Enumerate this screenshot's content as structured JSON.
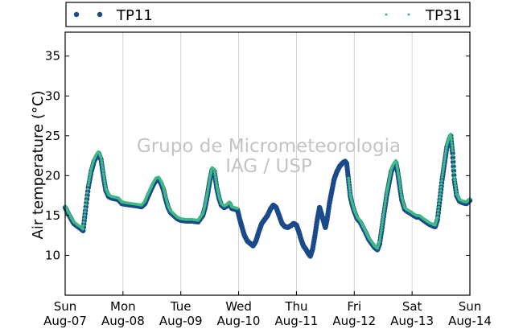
{
  "chart_data": {
    "type": "scatter",
    "ylabel": "Air temperature (°C)",
    "watermark": [
      "Grupo de Micrometeorologia",
      "IAG / USP"
    ],
    "legend_position": "top",
    "grid": "vertical",
    "ylim": [
      5,
      38
    ],
    "yticks": [
      10,
      15,
      20,
      25,
      30,
      35
    ],
    "xlim": [
      0,
      7
    ],
    "xticks": [
      {
        "x": 0,
        "day": "Sun",
        "date": "Aug-07"
      },
      {
        "x": 1,
        "day": "Mon",
        "date": "Aug-08"
      },
      {
        "x": 2,
        "day": "Tue",
        "date": "Aug-09"
      },
      {
        "x": 3,
        "day": "Wed",
        "date": "Aug-10"
      },
      {
        "x": 4,
        "day": "Thu",
        "date": "Aug-11"
      },
      {
        "x": 5,
        "day": "Fri",
        "date": "Aug-12"
      },
      {
        "x": 6,
        "day": "Sat",
        "date": "Aug-13"
      },
      {
        "x": 7,
        "day": "Sun",
        "date": "Aug-14"
      }
    ],
    "series": [
      {
        "name": "TP11",
        "color": "#1b4a8a",
        "marker": "circle",
        "points": [
          [
            0.0,
            16.0
          ],
          [
            0.05,
            15.3
          ],
          [
            0.1,
            14.6
          ],
          [
            0.15,
            14.0
          ],
          [
            0.22,
            13.6
          ],
          [
            0.28,
            13.3
          ],
          [
            0.31,
            13.1
          ],
          [
            0.35,
            15.6
          ],
          [
            0.4,
            18.5
          ],
          [
            0.45,
            20.5
          ],
          [
            0.5,
            21.8
          ],
          [
            0.55,
            22.5
          ],
          [
            0.58,
            22.8
          ],
          [
            0.62,
            22.0
          ],
          [
            0.66,
            20.0
          ],
          [
            0.7,
            18.2
          ],
          [
            0.75,
            17.4
          ],
          [
            0.8,
            17.2
          ],
          [
            0.86,
            17.1
          ],
          [
            0.92,
            17.0
          ],
          [
            0.98,
            16.5
          ],
          [
            1.05,
            16.4
          ],
          [
            1.15,
            16.3
          ],
          [
            1.25,
            16.2
          ],
          [
            1.32,
            16.1
          ],
          [
            1.38,
            16.5
          ],
          [
            1.42,
            17.2
          ],
          [
            1.47,
            18.0
          ],
          [
            1.52,
            18.8
          ],
          [
            1.57,
            19.4
          ],
          [
            1.62,
            19.5
          ],
          [
            1.66,
            19.0
          ],
          [
            1.7,
            18.2
          ],
          [
            1.74,
            17.0
          ],
          [
            1.78,
            16.0
          ],
          [
            1.82,
            15.4
          ],
          [
            1.88,
            15.0
          ],
          [
            1.94,
            14.6
          ],
          [
            2.0,
            14.4
          ],
          [
            2.1,
            14.3
          ],
          [
            2.2,
            14.3
          ],
          [
            2.3,
            14.2
          ],
          [
            2.38,
            15.0
          ],
          [
            2.42,
            16.0
          ],
          [
            2.46,
            17.5
          ],
          [
            2.5,
            19.3
          ],
          [
            2.54,
            20.7
          ],
          [
            2.58,
            20.5
          ],
          [
            2.62,
            18.5
          ],
          [
            2.66,
            17.2
          ],
          [
            2.7,
            16.3
          ],
          [
            2.75,
            16.0
          ],
          [
            2.8,
            16.2
          ],
          [
            2.84,
            16.5
          ],
          [
            2.88,
            15.9
          ],
          [
            2.93,
            15.8
          ],
          [
            2.98,
            15.7
          ],
          [
            3.02,
            14.5
          ],
          [
            3.06,
            13.5
          ],
          [
            3.1,
            12.5
          ],
          [
            3.15,
            11.8
          ],
          [
            3.2,
            11.5
          ],
          [
            3.25,
            11.2
          ],
          [
            3.3,
            11.8
          ],
          [
            3.35,
            13.0
          ],
          [
            3.4,
            14.0
          ],
          [
            3.45,
            14.5
          ],
          [
            3.5,
            15.0
          ],
          [
            3.55,
            15.8
          ],
          [
            3.6,
            16.3
          ],
          [
            3.65,
            16.0
          ],
          [
            3.7,
            15.0
          ],
          [
            3.75,
            14.0
          ],
          [
            3.8,
            13.6
          ],
          [
            3.85,
            13.5
          ],
          [
            3.9,
            13.7
          ],
          [
            3.95,
            14.0
          ],
          [
            4.0,
            13.8
          ],
          [
            4.04,
            13.0
          ],
          [
            4.08,
            12.0
          ],
          [
            4.12,
            11.2
          ],
          [
            4.16,
            10.8
          ],
          [
            4.2,
            10.3
          ],
          [
            4.24,
            9.9
          ],
          [
            4.28,
            10.8
          ],
          [
            4.32,
            12.5
          ],
          [
            4.36,
            14.5
          ],
          [
            4.4,
            16.0
          ],
          [
            4.44,
            15.0
          ],
          [
            4.48,
            14.0
          ],
          [
            4.5,
            13.5
          ],
          [
            4.53,
            14.5
          ],
          [
            4.57,
            16.5
          ],
          [
            4.61,
            18.0
          ],
          [
            4.65,
            19.5
          ],
          [
            4.7,
            20.5
          ],
          [
            4.75,
            21.2
          ],
          [
            4.8,
            21.6
          ],
          [
            4.84,
            21.8
          ],
          [
            4.87,
            21.5
          ],
          [
            4.9,
            19.5
          ],
          [
            4.93,
            17.5
          ],
          [
            4.96,
            16.5
          ],
          [
            5.0,
            15.5
          ],
          [
            5.05,
            14.6
          ],
          [
            5.1,
            14.2
          ],
          [
            5.15,
            13.5
          ],
          [
            5.2,
            12.8
          ],
          [
            5.25,
            12.0
          ],
          [
            5.3,
            11.5
          ],
          [
            5.35,
            11.0
          ],
          [
            5.4,
            10.7
          ],
          [
            5.44,
            11.5
          ],
          [
            5.48,
            13.5
          ],
          [
            5.52,
            15.5
          ],
          [
            5.56,
            17.5
          ],
          [
            5.6,
            19.0
          ],
          [
            5.64,
            20.5
          ],
          [
            5.68,
            21.2
          ],
          [
            5.72,
            21.6
          ],
          [
            5.75,
            20.5
          ],
          [
            5.78,
            19.0
          ],
          [
            5.82,
            17.0
          ],
          [
            5.87,
            15.8
          ],
          [
            5.92,
            15.5
          ],
          [
            5.97,
            15.3
          ],
          [
            6.03,
            15.0
          ],
          [
            6.08,
            14.8
          ],
          [
            6.13,
            14.8
          ],
          [
            6.18,
            14.5
          ],
          [
            6.24,
            14.2
          ],
          [
            6.3,
            13.9
          ],
          [
            6.36,
            13.7
          ],
          [
            6.4,
            13.6
          ],
          [
            6.44,
            14.5
          ],
          [
            6.48,
            17.0
          ],
          [
            6.52,
            19.5
          ],
          [
            6.56,
            21.5
          ],
          [
            6.6,
            23.5
          ],
          [
            6.64,
            24.5
          ],
          [
            6.67,
            25.0
          ],
          [
            6.7,
            22.8
          ],
          [
            6.73,
            19.5
          ],
          [
            6.77,
            17.5
          ],
          [
            6.82,
            16.8
          ],
          [
            6.88,
            16.6
          ],
          [
            6.94,
            16.5
          ],
          [
            6.98,
            16.8
          ],
          [
            7.0,
            16.9
          ]
        ]
      },
      {
        "name": "TP31",
        "color": "#3dbb84",
        "marker": "point",
        "points": [
          [
            0.0,
            16.2
          ],
          [
            0.05,
            15.5
          ],
          [
            0.1,
            14.8
          ],
          [
            0.15,
            14.2
          ],
          [
            0.22,
            13.8
          ],
          [
            0.28,
            13.5
          ],
          [
            0.31,
            13.3
          ],
          [
            0.35,
            15.9
          ],
          [
            0.4,
            18.8
          ],
          [
            0.45,
            20.8
          ],
          [
            0.5,
            22.1
          ],
          [
            0.55,
            22.8
          ],
          [
            0.58,
            23.0
          ],
          [
            0.62,
            22.3
          ],
          [
            0.66,
            20.3
          ],
          [
            0.7,
            18.4
          ],
          [
            0.75,
            17.6
          ],
          [
            0.8,
            17.4
          ],
          [
            0.86,
            17.3
          ],
          [
            0.92,
            17.2
          ],
          [
            0.98,
            16.7
          ],
          [
            1.05,
            16.6
          ],
          [
            1.15,
            16.5
          ],
          [
            1.25,
            16.4
          ],
          [
            1.32,
            16.3
          ],
          [
            1.38,
            16.8
          ],
          [
            1.42,
            17.5
          ],
          [
            1.47,
            18.3
          ],
          [
            1.52,
            19.1
          ],
          [
            1.57,
            19.7
          ],
          [
            1.62,
            19.8
          ],
          [
            1.66,
            19.3
          ],
          [
            1.7,
            18.5
          ],
          [
            1.74,
            17.3
          ],
          [
            1.78,
            16.2
          ],
          [
            1.82,
            15.6
          ],
          [
            1.88,
            15.2
          ],
          [
            1.94,
            14.8
          ],
          [
            2.0,
            14.6
          ],
          [
            2.1,
            14.5
          ],
          [
            2.2,
            14.5
          ],
          [
            2.3,
            14.4
          ],
          [
            2.38,
            15.2
          ],
          [
            2.42,
            16.3
          ],
          [
            2.46,
            17.8
          ],
          [
            2.5,
            19.6
          ],
          [
            2.54,
            21.0
          ],
          [
            2.58,
            20.8
          ],
          [
            2.62,
            18.8
          ],
          [
            2.66,
            17.4
          ],
          [
            2.7,
            16.5
          ],
          [
            2.75,
            16.2
          ],
          [
            2.8,
            16.4
          ],
          [
            2.84,
            16.7
          ],
          [
            2.88,
            16.1
          ],
          [
            2.93,
            16.0
          ],
          [
            2.98,
            15.9
          ],
          [
            4.9,
            19.7
          ],
          [
            4.93,
            17.7
          ],
          [
            4.96,
            16.7
          ],
          [
            5.0,
            15.7
          ],
          [
            5.05,
            14.8
          ],
          [
            5.1,
            14.4
          ],
          [
            5.15,
            13.7
          ],
          [
            5.2,
            13.0
          ],
          [
            5.25,
            12.2
          ],
          [
            5.3,
            11.7
          ],
          [
            5.35,
            11.2
          ],
          [
            5.4,
            10.9
          ],
          [
            5.44,
            11.8
          ],
          [
            5.48,
            13.8
          ],
          [
            5.52,
            15.8
          ],
          [
            5.56,
            17.8
          ],
          [
            5.6,
            19.3
          ],
          [
            5.64,
            20.8
          ],
          [
            5.68,
            21.5
          ],
          [
            5.72,
            21.9
          ],
          [
            5.75,
            20.8
          ],
          [
            5.78,
            19.3
          ],
          [
            5.82,
            17.3
          ],
          [
            5.87,
            16.0
          ],
          [
            5.92,
            15.7
          ],
          [
            5.97,
            15.5
          ],
          [
            6.03,
            15.2
          ],
          [
            6.08,
            15.0
          ],
          [
            6.13,
            15.0
          ],
          [
            6.18,
            14.7
          ],
          [
            6.24,
            14.4
          ],
          [
            6.3,
            14.1
          ],
          [
            6.36,
            13.9
          ],
          [
            6.4,
            13.8
          ],
          [
            6.44,
            14.8
          ],
          [
            6.48,
            17.3
          ],
          [
            6.52,
            19.8
          ],
          [
            6.56,
            21.8
          ],
          [
            6.6,
            23.8
          ],
          [
            6.64,
            24.8
          ],
          [
            6.67,
            25.2
          ],
          [
            6.7,
            23.1
          ],
          [
            6.73,
            19.8
          ],
          [
            6.77,
            17.7
          ],
          [
            6.82,
            17.0
          ],
          [
            6.88,
            16.8
          ],
          [
            6.94,
            16.7
          ],
          [
            6.98,
            17.0
          ],
          [
            7.0,
            17.1
          ]
        ]
      }
    ]
  }
}
